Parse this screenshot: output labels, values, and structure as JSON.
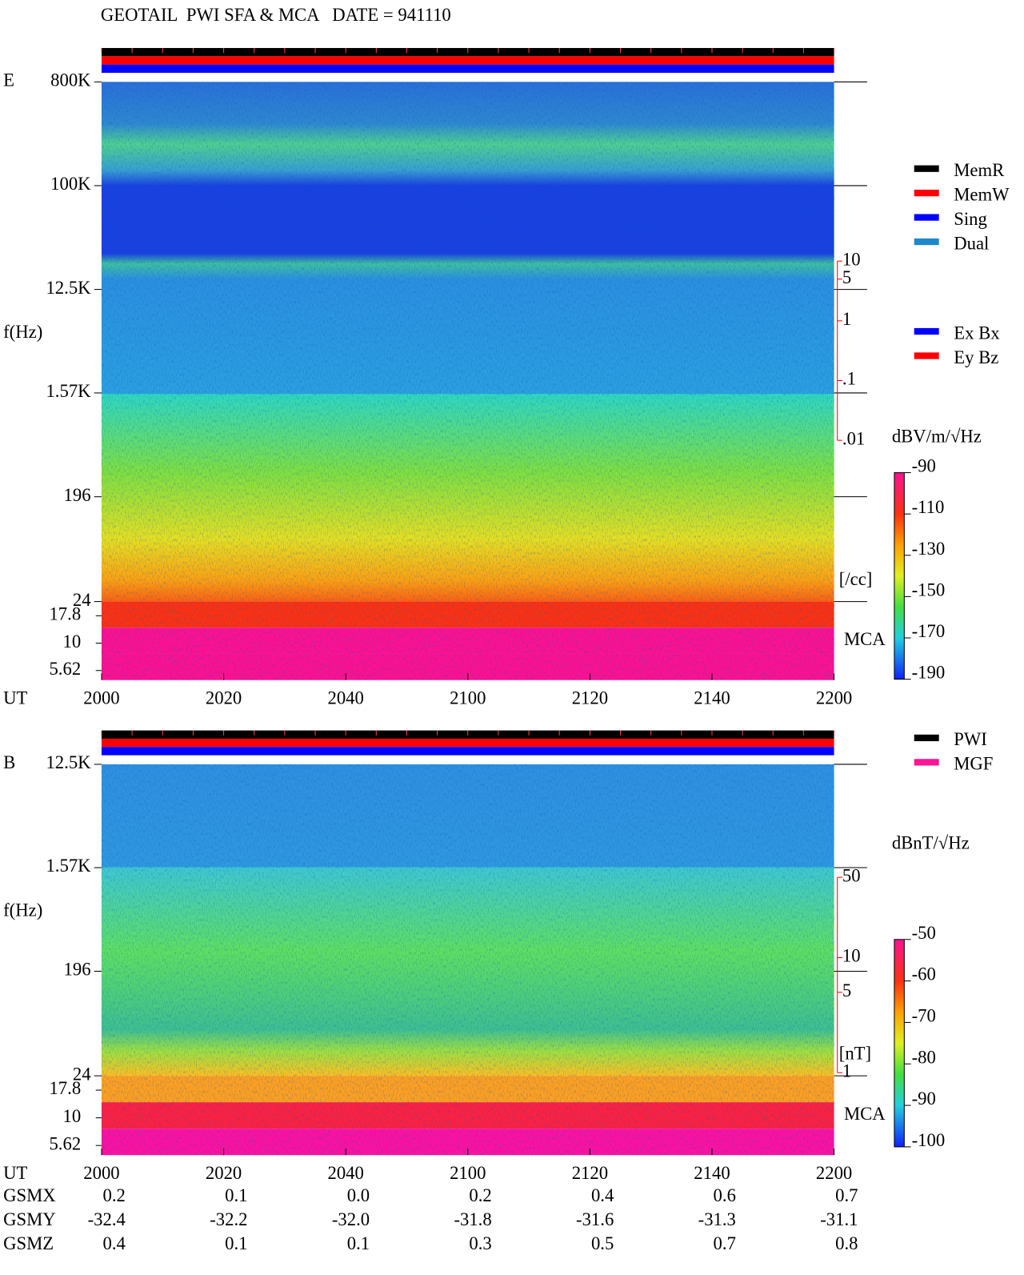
{
  "header": {
    "title": "GEOTAIL  PWI SFA & MCA   DATE = 941110"
  },
  "chart_data": [
    {
      "type": "spectrogram",
      "panel_label": "E",
      "y_label": "f(Hz)",
      "x_label": "UT",
      "log_y": true,
      "ylim": [
        24,
        800000
      ],
      "yticks": [
        {
          "value": 800000,
          "label": "800K"
        },
        {
          "value": 100000,
          "label": "100K"
        },
        {
          "value": 12500,
          "label": "12.5K"
        },
        {
          "value": 1570,
          "label": "1.57K"
        },
        196,
        24
      ],
      "mca_label": "MCA",
      "mca_ylim": [
        4.6,
        24
      ],
      "mca_yticks": [
        17.8,
        10,
        5.62
      ],
      "categories": [
        "2000",
        "2020",
        "2040",
        "2100",
        "2120",
        "2140",
        "2200"
      ],
      "y2lim": [
        2e-05,
        10000
      ],
      "y2_color": "#ff0000",
      "y2_label": "[/cc]",
      "y2ticks": [
        10,
        5,
        1,
        {
          "value": 0.1,
          "label": ".1"
        },
        {
          "value": 0.01,
          "label": ".01"
        }
      ],
      "colorbar": {
        "label": "dBV/m/√Hz",
        "clim": [
          -190,
          -90
        ],
        "ticks": [
          -90,
          -110,
          -130,
          -150,
          -170,
          -190
        ]
      },
      "status_colors": [
        "#000000",
        "#ff0000",
        "#0000ff"
      ],
      "legend": [
        {
          "name": "MemR",
          "color": "#000000"
        },
        {
          "name": "MemW",
          "color": "#ff0000"
        },
        {
          "name": "Sing",
          "color": "#0000ff"
        },
        {
          "name": "Dual",
          "color": "#1e88c8"
        }
      ],
      "legend2": [
        {
          "name": "Ex Bx",
          "color": "#0000ff"
        },
        {
          "name": "Ey Bz",
          "color": "#ff0000"
        }
      ]
    },
    {
      "type": "spectrogram",
      "panel_label": "B",
      "y_label": "f(Hz)",
      "x_label": "UT",
      "log_y": true,
      "ylim": [
        24,
        12500
      ],
      "yticks": [
        {
          "value": 12500,
          "label": "12.5K"
        },
        {
          "value": 1570,
          "label": "1.57K"
        },
        196,
        24
      ],
      "mca_label": "MCA",
      "mca_ylim": [
        4.6,
        24
      ],
      "mca_yticks": [
        17.8,
        10,
        5.62
      ],
      "categories": [
        "2000",
        "2020",
        "2040",
        "2100",
        "2120",
        "2140",
        "2200"
      ],
      "y2lim": [
        0.94,
        480
      ],
      "y2_color": "#ff0000",
      "y2_label": "[nT]",
      "y2ticks": [
        50,
        10,
        5,
        1
      ],
      "colorbar": {
        "label": "dBnT/√Hz",
        "clim": [
          -100,
          -50
        ],
        "ticks": [
          -50,
          -60,
          -70,
          -80,
          -90,
          -100
        ]
      },
      "status_colors": [
        "#000000",
        "#ff0000",
        "#0000ff"
      ],
      "legend": [
        {
          "name": "PWI",
          "color": "#000000"
        },
        {
          "name": "MGF",
          "color": "#ff1493"
        }
      ]
    }
  ],
  "ephemeris": [
    {
      "label": "GSMX",
      "values": [
        "0.2",
        "0.1",
        "0.0",
        "0.2",
        "0.4",
        "0.6",
        "0.7"
      ]
    },
    {
      "label": "GSMY",
      "values": [
        "-32.4",
        "-32.2",
        "-32.0",
        "-31.8",
        "-31.6",
        "-31.3",
        "-31.1"
      ]
    },
    {
      "label": "GSMZ",
      "values": [
        "0.4",
        "0.1",
        "0.1",
        "0.3",
        "0.5",
        "0.7",
        "0.8"
      ]
    }
  ]
}
